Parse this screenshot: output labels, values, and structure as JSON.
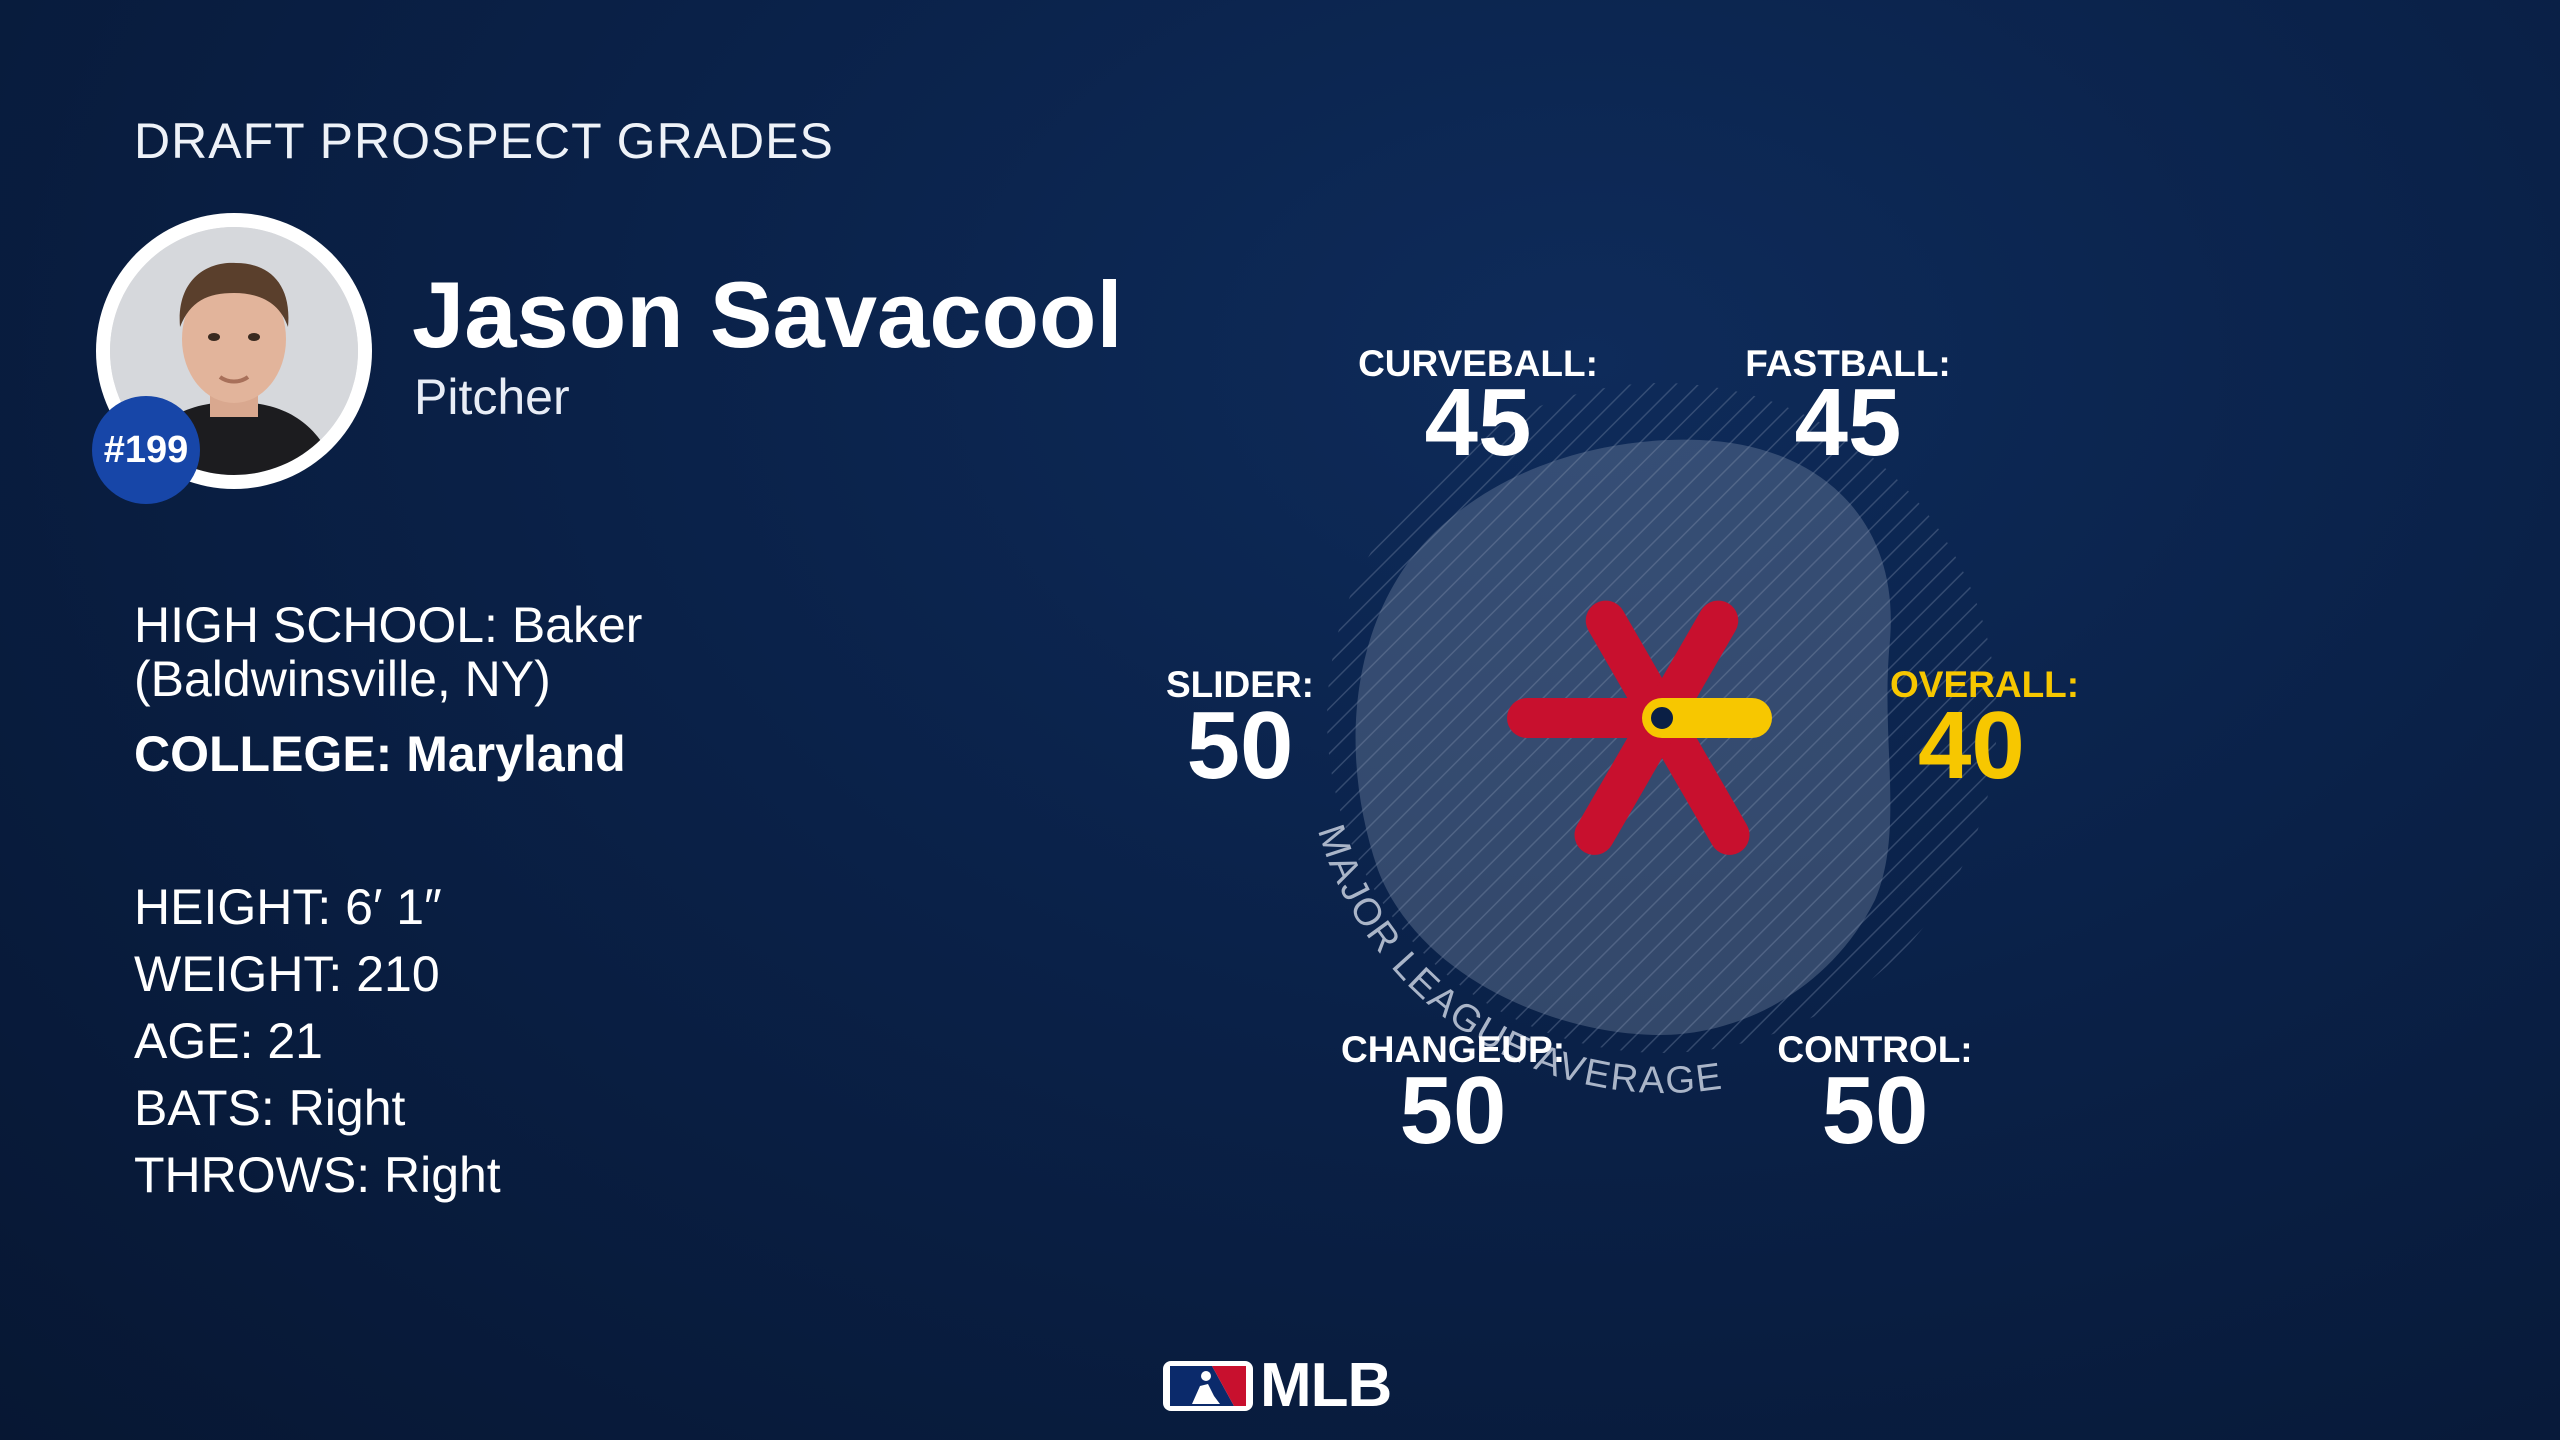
{
  "header": {
    "title": "DRAFT PROSPECT GRADES"
  },
  "player": {
    "name": "Jason Savacool",
    "position": "Pitcher",
    "rank": "#199",
    "high_school_line1": "HIGH SCHOOL: Baker",
    "high_school_line2": "(Baldwinsville, NY)",
    "college": "COLLEGE: Maryland",
    "stats": [
      "HEIGHT: 6′ 1″",
      "WEIGHT: 210",
      "AGE: 21",
      "BATS: Right",
      "THROWS: Right"
    ]
  },
  "chart_data": {
    "type": "radar",
    "scale": "20-80 scouting grade",
    "average_band_label": "MAJOR LEAGUE AVERAGE",
    "average_grade": 50,
    "axes": [
      {
        "label": "CURVEBALL:",
        "value": 45,
        "direction": "upper-left"
      },
      {
        "label": "FASTBALL:",
        "value": 45,
        "direction": "upper-right"
      },
      {
        "label": "OVERALL:",
        "value": 40,
        "direction": "right",
        "highlight": true
      },
      {
        "label": "CONTROL:",
        "value": 50,
        "direction": "lower-right"
      },
      {
        "label": "CHANGEUP:",
        "value": 50,
        "direction": "lower-left"
      },
      {
        "label": "SLIDER:",
        "value": 50,
        "direction": "left"
      }
    ],
    "colors": {
      "spoke": "#c8102e",
      "overall": "#f7c700",
      "average_band": "#8d9ab4"
    }
  },
  "footer": {
    "logo_text": "MLB"
  }
}
